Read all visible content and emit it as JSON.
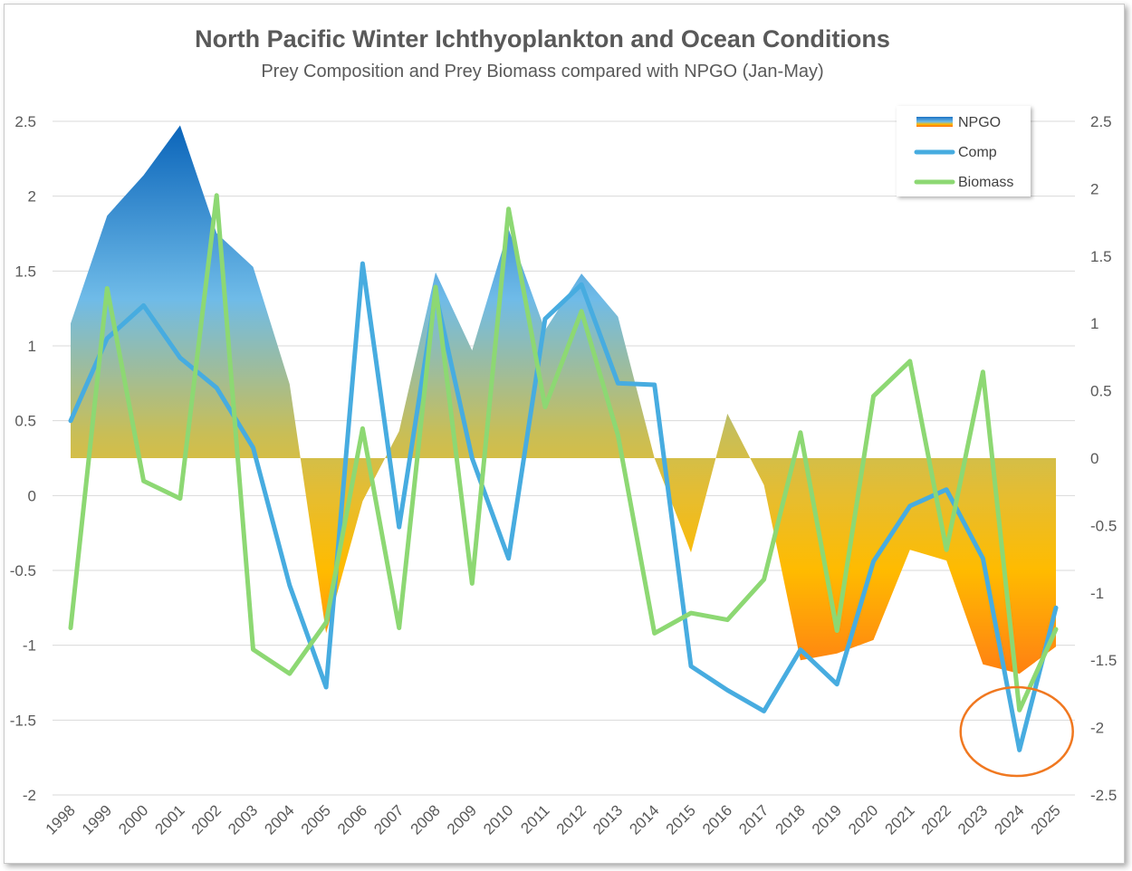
{
  "chart_data": {
    "type": "line",
    "title": "North Pacific Winter Ichthyoplankton and Ocean Conditions",
    "subtitle": "Prey Composition and Prey Biomass compared with NPGO (Jan-May)",
    "categories": [
      "1998",
      "1999",
      "2000",
      "2001",
      "2002",
      "2003",
      "2004",
      "2005",
      "2006",
      "2007",
      "2008",
      "2009",
      "2010",
      "2011",
      "2012",
      "2013",
      "2014",
      "2015",
      "2016",
      "2017",
      "2018",
      "2019",
      "2020",
      "2021",
      "2022",
      "2023",
      "2024",
      "2025"
    ],
    "y_left": {
      "range": [
        -2,
        2.5
      ],
      "ticks": [
        "2.5",
        "2",
        "1.5",
        "1",
        "0.5",
        "0",
        "-0.5",
        "-1",
        "-1.5",
        "-2"
      ]
    },
    "y_right": {
      "range": [
        -2.5,
        2.5
      ],
      "ticks": [
        "2.5",
        "2",
        "1.5",
        "1",
        "0.5",
        "0",
        "-0.5",
        "-1",
        "-1.5",
        "-2",
        "-2.5"
      ]
    },
    "grid": true,
    "legend": {
      "position": "top-right",
      "entries": [
        "NPGO",
        "Comp",
        "Biomass"
      ]
    },
    "series": [
      {
        "name": "NPGO",
        "kind": "area",
        "axis": "right",
        "values": [
          1.0,
          1.8,
          2.1,
          2.47,
          1.67,
          1.42,
          0.55,
          -1.3,
          -0.32,
          0.2,
          1.38,
          0.8,
          1.7,
          0.95,
          1.37,
          1.05,
          0.0,
          -0.7,
          0.33,
          -0.2,
          -1.5,
          -1.45,
          -1.35,
          -0.68,
          -0.76,
          -1.53,
          -1.6,
          -1.4
        ]
      },
      {
        "name": "Comp",
        "kind": "line",
        "axis": "left",
        "color": "#47ACE0",
        "values": [
          0.5,
          1.05,
          1.27,
          0.92,
          0.72,
          0.32,
          -0.6,
          -1.28,
          1.55,
          -0.21,
          1.35,
          0.25,
          -0.42,
          1.18,
          1.41,
          0.75,
          0.74,
          -1.14,
          -1.3,
          -1.44,
          -1.03,
          -1.26,
          -0.44,
          -0.07,
          0.04,
          -0.42,
          -1.7,
          -0.75
        ]
      },
      {
        "name": "Biomass",
        "kind": "line",
        "axis": "right",
        "color": "#8DD873",
        "values": [
          -1.26,
          1.26,
          -0.17,
          -0.3,
          1.95,
          -1.42,
          -1.6,
          -1.22,
          0.22,
          -1.26,
          1.27,
          -0.93,
          1.85,
          0.38,
          1.09,
          0.17,
          -1.3,
          -1.15,
          -1.2,
          -0.9,
          0.19,
          -1.28,
          0.46,
          0.72,
          -0.68,
          0.64,
          -1.87,
          -1.27
        ]
      }
    ],
    "annotations": [
      {
        "type": "ellipse",
        "category": "2024",
        "color": "#F07820"
      }
    ]
  }
}
